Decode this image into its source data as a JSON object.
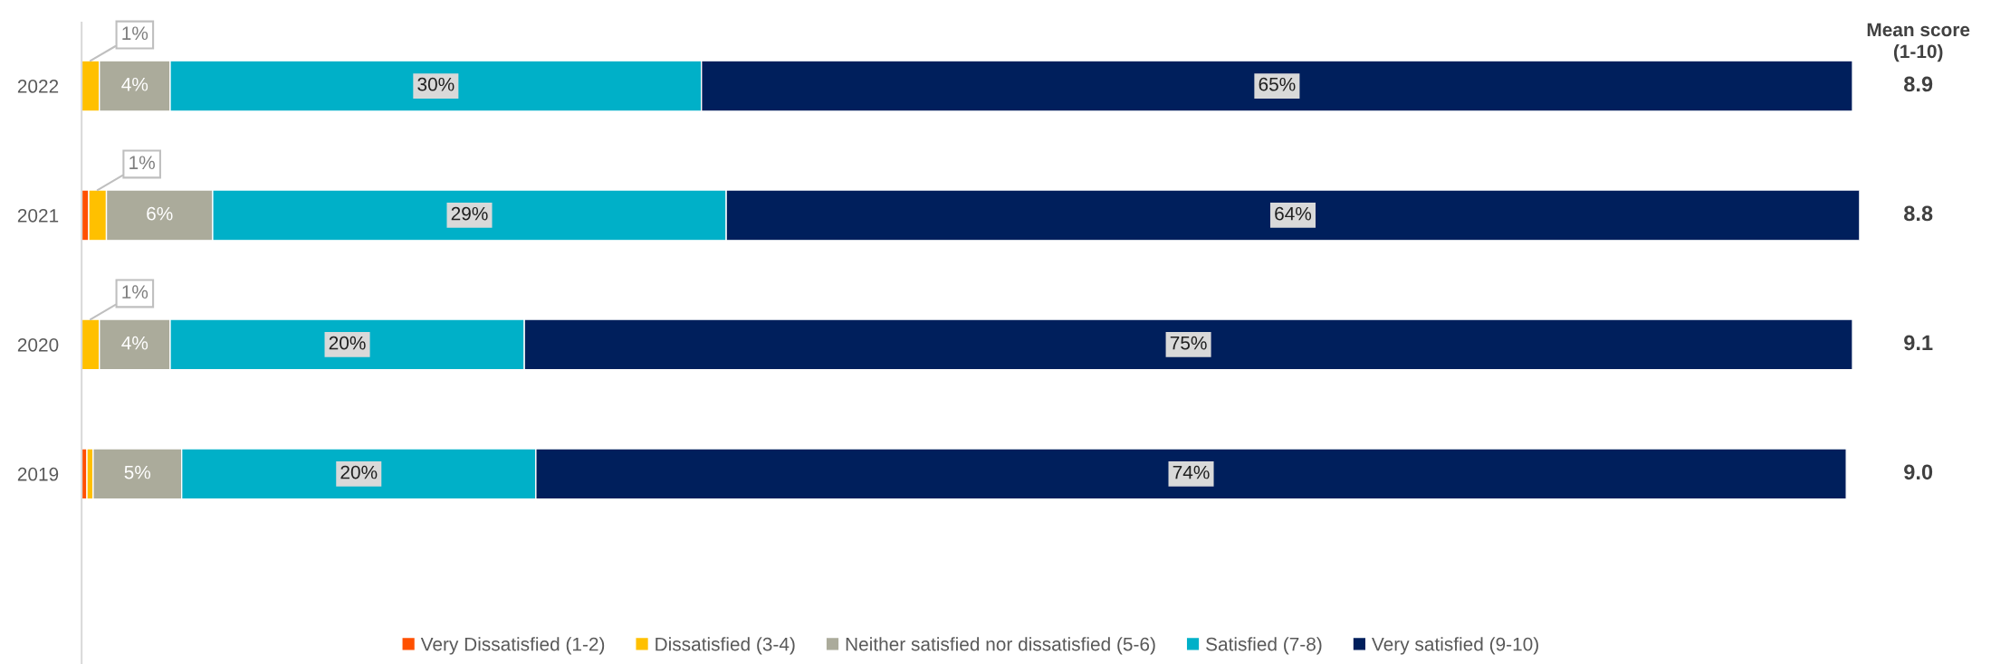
{
  "chart_data": {
    "type": "bar",
    "orientation": "horizontal",
    "stacked": true,
    "categories": [
      "2022",
      "2021",
      "2020",
      "2019"
    ],
    "series": [
      {
        "name": "Very Dissatisfied (1-2)",
        "color": "#ff5000",
        "values": [
          null,
          0.4,
          null,
          0.3
        ],
        "value_labels": [
          null,
          null,
          null,
          null
        ]
      },
      {
        "name": "Dissatisfied (3-4)",
        "color": "#ffc000",
        "values": [
          1,
          1,
          1,
          0.35
        ],
        "value_labels": [
          "1%",
          "1%",
          "1%",
          null
        ]
      },
      {
        "name": "Neither satisfied nor dissatisfied (5-6)",
        "color": "#abab9b",
        "values": [
          4,
          6,
          4,
          5
        ],
        "value_labels": [
          "4%",
          "6%",
          "4%",
          "5%"
        ]
      },
      {
        "name": "Satisfied (7-8)",
        "color": "#00b0c8",
        "values": [
          30,
          29,
          20,
          20
        ],
        "value_labels": [
          "30%",
          "29%",
          "20%",
          "20%"
        ]
      },
      {
        "name": "Very satisfied (9-10)",
        "color": "#001f5c",
        "values": [
          65,
          64,
          75,
          74
        ],
        "value_labels": [
          "65%",
          "64%",
          "75%",
          "74%"
        ]
      }
    ],
    "annotations": [
      "Mean score\n(1-10)",
      "8.9",
      "8.8",
      "9.1",
      "9.0"
    ],
    "legend": "bottom",
    "tick_labels": "y"
  }
}
